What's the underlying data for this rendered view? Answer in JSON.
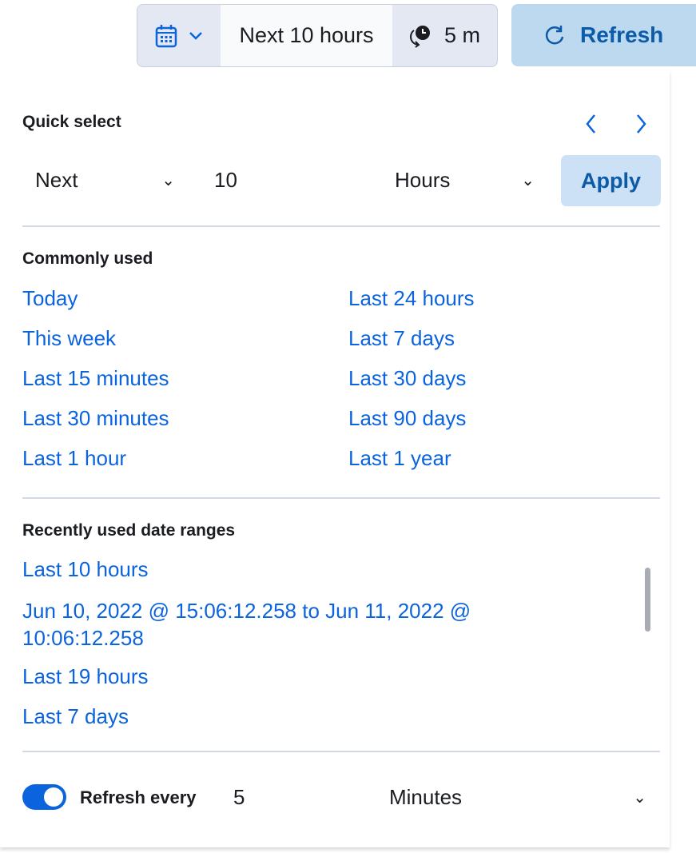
{
  "header": {
    "range_label": "Next 10 hours",
    "refresh_interval": "5 m",
    "refresh_button": "Refresh"
  },
  "quick_select": {
    "title": "Quick select",
    "direction": "Next",
    "value": "10",
    "unit": "Hours",
    "apply": "Apply"
  },
  "commonly_used": {
    "title": "Commonly used",
    "left": [
      "Today",
      "This week",
      "Last 15 minutes",
      "Last 30 minutes",
      "Last 1 hour"
    ],
    "right": [
      "Last 24 hours",
      "Last 7 days",
      "Last 30 days",
      "Last 90 days",
      "Last 1 year"
    ]
  },
  "recent": {
    "title": "Recently used date ranges",
    "items": [
      "Last 10 hours",
      "Jun 10, 2022 @ 15:06:12.258 to Jun 11, 2022 @ 10:06:12.258",
      "Last 19 hours",
      "Last 7 days"
    ]
  },
  "refresh": {
    "label": "Refresh every",
    "value": "5",
    "unit": "Minutes",
    "enabled": true
  },
  "colors": {
    "link": "#0b64dd",
    "button_bg": "#bcd9f0"
  }
}
